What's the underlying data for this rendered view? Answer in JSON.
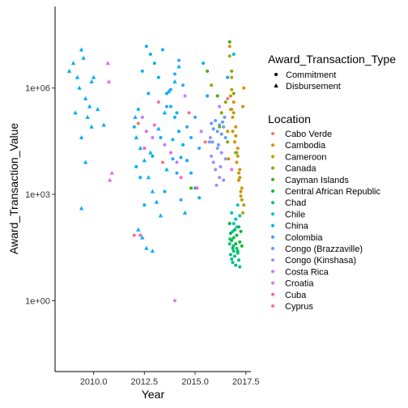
{
  "chart_data": {
    "type": "scatter",
    "title": "",
    "xlabel": "Year",
    "ylabel": "Award_Transaction_Value",
    "x_scale": "linear",
    "y_scale": "log10",
    "xlim": [
      2008.1,
      2017.75
    ],
    "ylim": [
      0.01,
      200000000
    ],
    "x_ticks": [
      {
        "value": 2010,
        "label": "2010.0"
      },
      {
        "value": 2012.5,
        "label": "2012.5"
      },
      {
        "value": 2015,
        "label": "2015.0"
      },
      {
        "value": 2017.5,
        "label": "2017.5"
      }
    ],
    "y_ticks": [
      {
        "value": 1,
        "label": "1e+00"
      },
      {
        "value": 1000,
        "label": "1e+03"
      },
      {
        "value": 1000000,
        "label": "1e+06"
      }
    ],
    "grid": false,
    "legend_placement": "right",
    "shape_legend": {
      "title": "Award_Transaction_Type",
      "items": [
        {
          "label": "Commitment",
          "shape": "circle"
        },
        {
          "label": "Disbursement",
          "shape": "triangle"
        }
      ]
    },
    "color_legend": {
      "title": "Location",
      "items": [
        {
          "label": "Cabo Verde",
          "color": "#F8766D"
        },
        {
          "label": "Cambodia",
          "color": "#D89000"
        },
        {
          "label": "Cameroon",
          "color": "#B79F00"
        },
        {
          "label": "Canada",
          "color": "#7CAE00"
        },
        {
          "label": "Cayman Islands",
          "color": "#39B600"
        },
        {
          "label": "Central African Republic",
          "color": "#00BA38"
        },
        {
          "label": "Chad",
          "color": "#00BF7D"
        },
        {
          "label": "Chile",
          "color": "#00BFC4"
        },
        {
          "label": "China",
          "color": "#00B0F6"
        },
        {
          "label": "Colombia",
          "color": "#35A2FF"
        },
        {
          "label": "Congo (Brazzaville)",
          "color": "#619CFF"
        },
        {
          "label": "Congo (Kinshasa)",
          "color": "#9590FF"
        },
        {
          "label": "Costa Rica",
          "color": "#C77CFF"
        },
        {
          "label": "Croatia",
          "color": "#E76BF3"
        },
        {
          "label": "Cuba",
          "color": "#FF62BC"
        },
        {
          "label": "Cyprus",
          "color": "#FF6C91"
        }
      ]
    },
    "series": [
      {
        "location": "China",
        "type": "Disbursement",
        "points": [
          [
            2008.8,
            3000000
          ],
          [
            2009.0,
            5000000
          ],
          [
            2009.2,
            2000000
          ],
          [
            2009.4,
            12000000
          ],
          [
            2009.5,
            7000000
          ],
          [
            2009.3,
            1000000
          ],
          [
            2009.6,
            500000
          ],
          [
            2009.1,
            200000
          ],
          [
            2009.7,
            150000
          ],
          [
            2009.8,
            300000
          ],
          [
            2009.9,
            80000
          ],
          [
            2009.4,
            40000
          ],
          [
            2010.2,
            250000
          ],
          [
            2010.5,
            90000
          ],
          [
            2009.6,
            8000
          ],
          [
            2009.4,
            400
          ],
          [
            2010.0,
            2000000
          ],
          [
            2009.9,
            1500000
          ]
        ]
      },
      {
        "location": "China",
        "type": "Commitment",
        "points": [
          [
            2012.0,
            80000
          ],
          [
            2012.2,
            250000
          ],
          [
            2012.4,
            3000000
          ],
          [
            2012.6,
            15000000
          ],
          [
            2012.8,
            9000000
          ],
          [
            2013.0,
            5000000
          ],
          [
            2013.2,
            2000000
          ],
          [
            2013.4,
            12000000
          ],
          [
            2013.6,
            700000
          ],
          [
            2013.8,
            300000
          ],
          [
            2014.0,
            150000
          ],
          [
            2014.2,
            60000
          ],
          [
            2014.4,
            25000
          ],
          [
            2014.6,
            9000
          ],
          [
            2014.8,
            4000
          ],
          [
            2015.0,
            1500
          ],
          [
            2015.2,
            800
          ],
          [
            2012.9,
            12000
          ],
          [
            2012.3,
            3000
          ],
          [
            2013.5,
            1200
          ],
          [
            2014.1,
            200000
          ],
          [
            2013.3,
            40000
          ],
          [
            2012.7,
            700000
          ],
          [
            2015.4,
            5000000
          ],
          [
            2015.6,
            600000
          ],
          [
            2016.6,
            2000000
          ],
          [
            2016.9,
            9000000
          ],
          [
            2013.9,
            35000
          ],
          [
            2014.3,
            11000
          ],
          [
            2012.1,
            6000
          ],
          [
            2012.5,
            500
          ]
        ]
      },
      {
        "location": "China",
        "type": "Disbursement",
        "points": [
          [
            2012.1,
            40000
          ],
          [
            2012.3,
            20000
          ],
          [
            2012.5,
            9000
          ],
          [
            2012.7,
            3000
          ],
          [
            2012.9,
            1200
          ],
          [
            2013.1,
            600
          ],
          [
            2013.3,
            250
          ],
          [
            2012.2,
            100
          ],
          [
            2012.4,
            60
          ],
          [
            2012.6,
            30
          ],
          [
            2012.9,
            25
          ],
          [
            2013.5,
            200000
          ],
          [
            2013.7,
            800000
          ],
          [
            2014.0,
            1500000
          ],
          [
            2014.2,
            4000000
          ],
          [
            2013.2,
            70000
          ],
          [
            2012.8,
            15000
          ],
          [
            2014.5,
            300
          ],
          [
            2012.05,
            150000
          ],
          [
            2013.6,
            5000
          ]
        ]
      },
      {
        "location": "Colombia",
        "type": "Commitment",
        "points": [
          [
            2013.6,
            300000
          ],
          [
            2013.8,
            900000
          ],
          [
            2014.0,
            2500000
          ],
          [
            2014.2,
            6000000
          ],
          [
            2014.4,
            1200000
          ],
          [
            2014.6,
            80000
          ],
          [
            2014.8,
            40000
          ],
          [
            2015.0,
            150000
          ],
          [
            2015.2,
            20000
          ],
          [
            2013.9,
            10000
          ],
          [
            2014.1,
            4000
          ],
          [
            2014.3,
            700
          ]
        ]
      },
      {
        "location": "Congo (Brazzaville)",
        "type": "Commitment",
        "points": [
          [
            2015.8,
            100000
          ],
          [
            2015.9,
            70000
          ],
          [
            2016.0,
            120000
          ],
          [
            2016.1,
            60000
          ],
          [
            2016.2,
            90000
          ],
          [
            2016.3,
            50000
          ],
          [
            2016.4,
            80000
          ],
          [
            2016.5,
            40000
          ],
          [
            2015.85,
            30000
          ],
          [
            2016.15,
            25000
          ],
          [
            2016.35,
            110000
          ],
          [
            2016.45,
            150000
          ]
        ]
      },
      {
        "location": "Congo (Kinshasa)",
        "type": "Commitment",
        "points": [
          [
            2015.7,
            30000
          ],
          [
            2015.8,
            12000
          ],
          [
            2015.9,
            8000
          ],
          [
            2016.0,
            5000
          ],
          [
            2016.1,
            20000
          ],
          [
            2016.2,
            3000
          ],
          [
            2016.3,
            15000
          ],
          [
            2016.4,
            2500
          ],
          [
            2016.5,
            10000
          ],
          [
            2015.75,
            40000
          ],
          [
            2016.05,
            1800
          ],
          [
            2016.25,
            6000
          ]
        ]
      },
      {
        "location": "Costa Rica",
        "type": "Commitment",
        "points": [
          [
            2012.4,
            150000
          ],
          [
            2012.9,
            40000
          ],
          [
            2013.5,
            25000
          ],
          [
            2014.1,
            8000
          ],
          [
            2014.5,
            600000
          ],
          [
            2015.3,
            60000
          ],
          [
            2016.2,
            300000
          ],
          [
            2014.0,
            1
          ]
        ]
      },
      {
        "location": "Croatia",
        "type": "Commitment",
        "points": [
          [
            2012.6,
            60000
          ],
          [
            2013.8,
            15000
          ],
          [
            2016.8,
            5000
          ]
        ]
      },
      {
        "location": "Croatia",
        "type": "Disbursement",
        "points": [
          [
            2010.8,
            2500
          ],
          [
            2010.9,
            4000
          ],
          [
            2010.7,
            5000000
          ],
          [
            2010.75,
            1500000
          ]
        ]
      },
      {
        "location": "Cuba",
        "type": "Commitment",
        "points": [
          [
            2012.3,
            70
          ],
          [
            2012.5,
            20000
          ],
          [
            2013.2,
            400000
          ],
          [
            2013.0,
            90000
          ],
          [
            2014.3,
            3000
          ],
          [
            2015.1,
            1500
          ]
        ]
      },
      {
        "location": "Cyprus",
        "type": "Commitment",
        "points": [
          [
            2012.0,
            70
          ],
          [
            2014.7,
            200000
          ],
          [
            2016.6,
            500000
          ]
        ]
      },
      {
        "location": "Cabo Verde",
        "type": "Commitment",
        "points": [
          [
            2012.2,
            100000
          ],
          [
            2013.4,
            8000
          ],
          [
            2015.5,
            30000
          ],
          [
            2016.8,
            250000
          ]
        ]
      },
      {
        "location": "Cambodia",
        "type": "Commitment",
        "points": [
          [
            2016.7,
            15000000
          ],
          [
            2016.8,
            2000000
          ],
          [
            2016.9,
            400000
          ],
          [
            2017.0,
            80000
          ],
          [
            2017.1,
            20000
          ],
          [
            2017.2,
            5000
          ],
          [
            2017.3,
            1500
          ],
          [
            2016.75,
            600000
          ],
          [
            2016.85,
            150000
          ],
          [
            2016.95,
            30000
          ],
          [
            2017.05,
            8000
          ],
          [
            2017.15,
            2500
          ],
          [
            2017.25,
            900
          ],
          [
            2016.6,
            60000
          ],
          [
            2017.35,
            300000
          ],
          [
            2017.4,
            1000000
          ],
          [
            2016.65,
            10000
          ]
        ]
      },
      {
        "location": "Cameroon",
        "type": "Commitment",
        "points": [
          [
            2016.7,
            8000000
          ],
          [
            2016.8,
            900000
          ],
          [
            2016.9,
            200000
          ],
          [
            2017.0,
            45000
          ],
          [
            2017.1,
            12000
          ],
          [
            2017.2,
            3000
          ],
          [
            2017.3,
            700
          ],
          [
            2017.35,
            300
          ],
          [
            2016.75,
            250000
          ],
          [
            2016.85,
            60000
          ],
          [
            2017.05,
            15000
          ],
          [
            2017.15,
            4000
          ],
          [
            2017.25,
            1200
          ],
          [
            2017.4,
            500
          ]
        ]
      },
      {
        "location": "Canada",
        "type": "Commitment",
        "points": [
          [
            2016.2,
            80000
          ],
          [
            2016.3,
            200000
          ],
          [
            2016.5,
            400000
          ],
          [
            2015.8,
            1200000
          ],
          [
            2016.8,
            3000000
          ],
          [
            2016.9,
            700000
          ],
          [
            2017.0,
            15000
          ],
          [
            2016.6,
            30000
          ]
        ]
      },
      {
        "location": "Cayman Islands",
        "type": "Commitment",
        "points": [
          [
            2014.8,
            1500
          ],
          [
            2015.6,
            3000000
          ],
          [
            2016.1,
            600000
          ],
          [
            2016.7,
            20000000
          ]
        ]
      },
      {
        "location": "Central African Republic",
        "type": "Commitment",
        "points": [
          [
            2016.7,
            150
          ],
          [
            2016.75,
            80
          ],
          [
            2016.8,
            50
          ],
          [
            2016.85,
            30
          ],
          [
            2016.9,
            60
          ],
          [
            2016.95,
            100
          ],
          [
            2017.0,
            40
          ],
          [
            2017.05,
            70
          ],
          [
            2017.1,
            25
          ],
          [
            2017.15,
            120
          ],
          [
            2017.2,
            45
          ],
          [
            2017.25,
            90
          ],
          [
            2017.3,
            35
          ]
        ]
      },
      {
        "location": "Chad",
        "type": "Commitment",
        "points": [
          [
            2016.7,
            40
          ],
          [
            2016.75,
            20
          ],
          [
            2016.8,
            15
          ],
          [
            2016.85,
            12
          ],
          [
            2016.9,
            25
          ],
          [
            2016.95,
            18
          ],
          [
            2017.0,
            10
          ],
          [
            2017.05,
            30
          ],
          [
            2017.1,
            22
          ],
          [
            2017.15,
            14
          ],
          [
            2017.2,
            9
          ],
          [
            2016.72,
            55
          ],
          [
            2016.88,
            35
          ]
        ]
      },
      {
        "location": "Chile",
        "type": "Commitment",
        "points": [
          [
            2016.8,
            300
          ],
          [
            2016.9,
            150
          ],
          [
            2017.0,
            200
          ],
          [
            2017.1,
            500
          ],
          [
            2017.2,
            250
          ],
          [
            2016.85,
            90
          ],
          [
            2017.05,
            120
          ]
        ]
      }
    ]
  }
}
